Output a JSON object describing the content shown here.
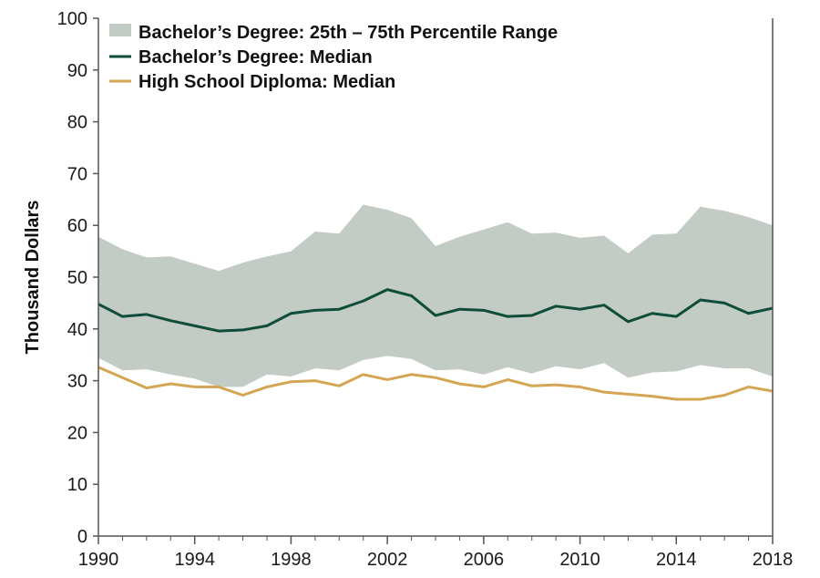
{
  "chart_data": {
    "type": "line",
    "title": "",
    "xlabel": "",
    "ylabel": "Thousand Dollars",
    "xlim": [
      1990,
      2018
    ],
    "ylim": [
      0,
      100
    ],
    "x_ticks": [
      1990,
      1994,
      1998,
      2002,
      2006,
      2010,
      2014,
      2018
    ],
    "y_ticks": [
      0,
      10,
      20,
      30,
      40,
      50,
      60,
      70,
      80,
      90,
      100
    ],
    "grid": false,
    "legend_position": "top-left",
    "x": [
      1990,
      1991,
      1992,
      1993,
      1994,
      1995,
      1996,
      1997,
      1998,
      1999,
      2000,
      2001,
      2002,
      2003,
      2004,
      2005,
      2006,
      2007,
      2008,
      2009,
      2010,
      2011,
      2012,
      2013,
      2014,
      2015,
      2016,
      2017,
      2018
    ],
    "band": {
      "name": "Bachelor’s Degree: 25th – 75th Percentile Range",
      "color": "#c2cbc4",
      "upper": [
        57.8,
        55.4,
        53.8,
        54.0,
        52.6,
        51.2,
        52.8,
        54.0,
        55.0,
        58.8,
        58.4,
        64.0,
        63.0,
        61.4,
        56.0,
        57.8,
        59.2,
        60.6,
        58.4,
        58.6,
        57.6,
        58.0,
        54.6,
        58.2,
        58.4,
        63.6,
        62.8,
        61.6,
        60.0
      ],
      "lower": [
        34.4,
        32.0,
        32.2,
        31.2,
        30.4,
        28.8,
        28.8,
        31.2,
        30.8,
        32.4,
        32.0,
        34.0,
        34.8,
        34.2,
        32.0,
        32.2,
        31.2,
        32.6,
        31.4,
        32.8,
        32.2,
        33.4,
        30.6,
        31.6,
        31.8,
        33.0,
        32.4,
        32.4,
        30.8
      ]
    },
    "series": [
      {
        "name": "Bachelor’s Degree: Median",
        "color": "#0e4d3a",
        "values": [
          44.8,
          42.4,
          42.8,
          41.6,
          40.6,
          39.6,
          39.8,
          40.6,
          43.0,
          43.6,
          43.8,
          45.4,
          47.6,
          46.4,
          42.6,
          43.8,
          43.6,
          42.4,
          42.6,
          44.4,
          43.8,
          44.6,
          41.4,
          43.0,
          42.4,
          45.6,
          45.0,
          43.0,
          44.0
        ]
      },
      {
        "name": "High School Diploma: Median",
        "color": "#d4a653",
        "values": [
          32.6,
          30.6,
          28.6,
          29.4,
          28.8,
          28.8,
          27.2,
          28.8,
          29.8,
          30.0,
          29.0,
          31.2,
          30.2,
          31.2,
          30.6,
          29.4,
          28.8,
          30.2,
          29.0,
          29.2,
          28.8,
          27.8,
          27.4,
          27.0,
          26.4,
          26.4,
          27.2,
          28.8,
          28.0
        ]
      }
    ]
  }
}
